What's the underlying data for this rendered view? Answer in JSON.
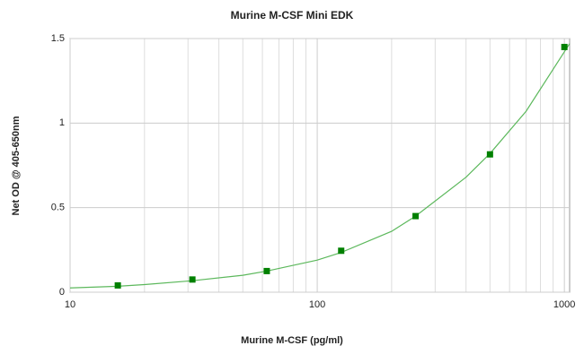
{
  "chart_data": {
    "type": "scatter",
    "title": "Murine M-CSF Mini EDK",
    "x_label": "Murine M-CSF (pg/ml)",
    "y_label": "Net OD @ 405-650nm",
    "xscale": "log",
    "xlim": [
      10,
      1050
    ],
    "ylim": [
      0,
      1.5
    ],
    "xticks": [
      10,
      100,
      1000
    ],
    "minor_xticks": [
      20,
      30,
      40,
      50,
      60,
      70,
      80,
      90,
      200,
      300,
      400,
      500,
      600,
      700,
      800,
      900
    ],
    "yticks": [
      0,
      0.5,
      1,
      1.5
    ],
    "grid": true,
    "series": [
      {
        "type": "line",
        "color": "#5cb85c",
        "x": [
          10,
          15.6,
          20,
          31.25,
          50,
          62.5,
          100,
          125,
          200,
          250,
          400,
          500,
          700,
          1050
        ],
        "values": [
          0.025,
          0.035,
          0.045,
          0.068,
          0.1,
          0.125,
          0.19,
          0.235,
          0.36,
          0.45,
          0.68,
          0.82,
          1.07,
          1.47
        ]
      },
      {
        "type": "scatter",
        "color": "#008000",
        "x": [
          15.6,
          31.25,
          62.5,
          125,
          250,
          500,
          1000
        ],
        "values": [
          0.04,
          0.075,
          0.125,
          0.245,
          0.45,
          0.815,
          1.45
        ]
      }
    ]
  }
}
